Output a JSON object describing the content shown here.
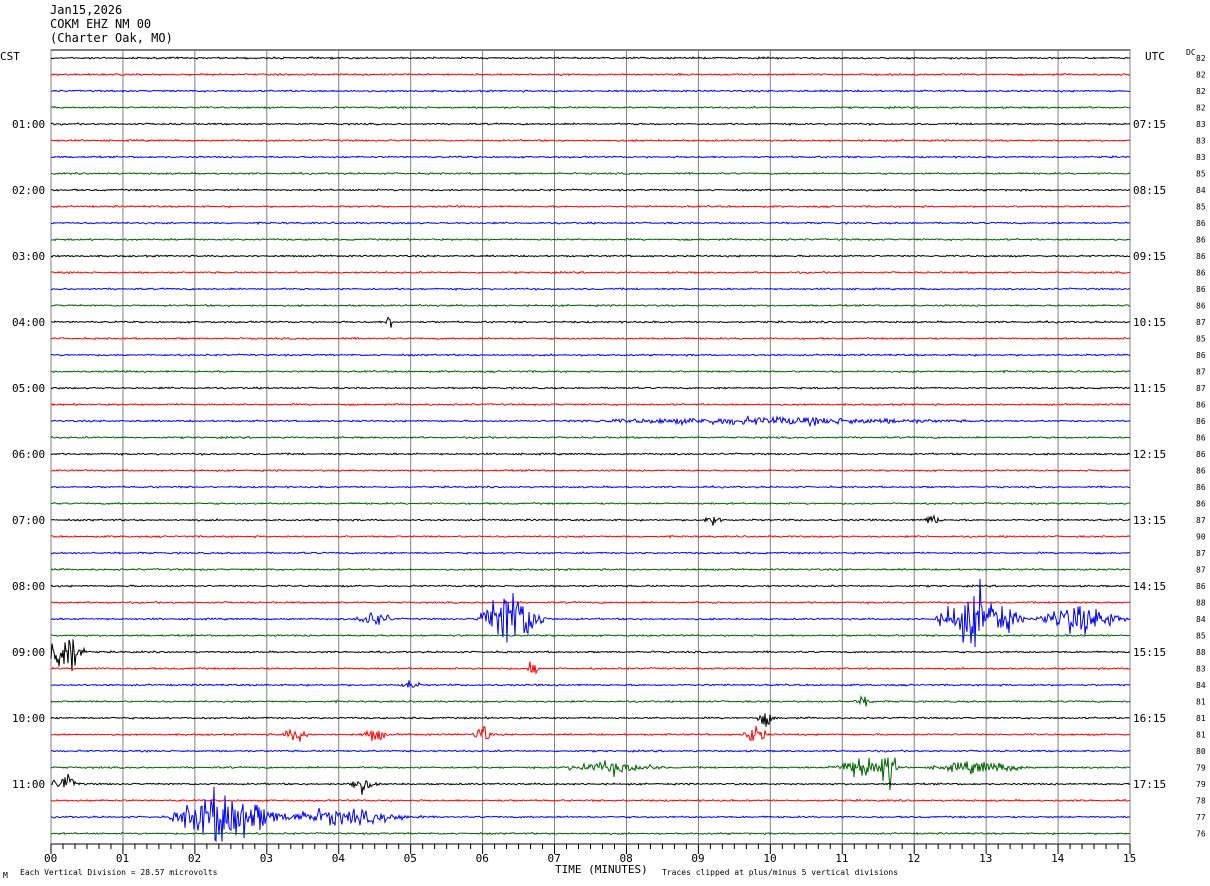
{
  "header": {
    "date": "Jan15,2026",
    "station": "COKM EHZ NM 00",
    "location": "(Charter Oak, MO)"
  },
  "left_axis_label": "CST",
  "right_axis_label": "UTC",
  "dc_label": "DC",
  "footer": {
    "vertical_division": "Each Vertical Division =   28.57 microvolts",
    "xlabel": "TIME (MINUTES)",
    "clip_note": "Traces clipped at plus/minus 5 vertical divisions",
    "corner_mark": "M"
  },
  "colors": {
    "trace_cycle": [
      "#000000",
      "#ff0000",
      "#0000ff",
      "#006400"
    ],
    "grid": "#808080"
  },
  "chart_data": {
    "type": "line",
    "title": "COKM EHZ NM 00",
    "xlabel": "TIME (MINUTES)",
    "xlim": [
      0,
      15
    ],
    "x_ticks": [
      "00",
      "01",
      "02",
      "03",
      "04",
      "05",
      "06",
      "07",
      "08",
      "09",
      "10",
      "11",
      "12",
      "13",
      "14",
      "15"
    ],
    "trace_count": 48,
    "left_time_labels": [
      {
        "trace": 4,
        "label": "01:00"
      },
      {
        "trace": 8,
        "label": "02:00"
      },
      {
        "trace": 12,
        "label": "03:00"
      },
      {
        "trace": 16,
        "label": "04:00"
      },
      {
        "trace": 20,
        "label": "05:00"
      },
      {
        "trace": 24,
        "label": "06:00"
      },
      {
        "trace": 28,
        "label": "07:00"
      },
      {
        "trace": 32,
        "label": "08:00"
      },
      {
        "trace": 36,
        "label": "09:00"
      },
      {
        "trace": 40,
        "label": "10:00"
      },
      {
        "trace": 44,
        "label": "11:00"
      }
    ],
    "right_time_labels": [
      {
        "trace": 4,
        "label": "07:15"
      },
      {
        "trace": 8,
        "label": "08:15"
      },
      {
        "trace": 12,
        "label": "09:15"
      },
      {
        "trace": 16,
        "label": "10:15"
      },
      {
        "trace": 20,
        "label": "11:15"
      },
      {
        "trace": 24,
        "label": "12:15"
      },
      {
        "trace": 28,
        "label": "13:15"
      },
      {
        "trace": 32,
        "label": "14:15"
      },
      {
        "trace": 36,
        "label": "15:15"
      },
      {
        "trace": 40,
        "label": "16:15"
      },
      {
        "trace": 44,
        "label": "17:15"
      }
    ],
    "dc_offsets": [
      82,
      82,
      82,
      82,
      83,
      83,
      83,
      85,
      84,
      85,
      86,
      86,
      86,
      86,
      86,
      86,
      87,
      85,
      86,
      87,
      87,
      86,
      86,
      86,
      86,
      86,
      86,
      86,
      87,
      90,
      87,
      87,
      86,
      88,
      84,
      85,
      88,
      83,
      84,
      81,
      81,
      81,
      80,
      79,
      79,
      78,
      77,
      76
    ],
    "events": [
      {
        "trace": 16,
        "minute": 4.7,
        "amplitude": 1.2,
        "width_min": 0.1
      },
      {
        "trace": 22,
        "minute": 10.0,
        "amplitude": 0.35,
        "width_min": 6.0
      },
      {
        "trace": 28,
        "minute": 9.2,
        "amplitude": 0.6,
        "width_min": 0.3
      },
      {
        "trace": 28,
        "minute": 12.25,
        "amplitude": 0.6,
        "width_min": 0.3
      },
      {
        "trace": 34,
        "minute": 6.4,
        "amplitude": 3.5,
        "width_min": 1.0
      },
      {
        "trace": 34,
        "minute": 12.9,
        "amplitude": 3.0,
        "width_min": 1.3
      },
      {
        "trace": 34,
        "minute": 14.3,
        "amplitude": 1.6,
        "width_min": 1.4
      },
      {
        "trace": 34,
        "minute": 4.5,
        "amplitude": 0.8,
        "width_min": 0.6
      },
      {
        "trace": 36,
        "minute": 0.2,
        "amplitude": 2.8,
        "width_min": 0.6
      },
      {
        "trace": 37,
        "minute": 6.7,
        "amplitude": 1.5,
        "width_min": 0.15
      },
      {
        "trace": 38,
        "minute": 5.0,
        "amplitude": 0.5,
        "width_min": 0.3
      },
      {
        "trace": 39,
        "minute": 11.3,
        "amplitude": 0.5,
        "width_min": 0.3
      },
      {
        "trace": 40,
        "minute": 9.95,
        "amplitude": 0.8,
        "width_min": 0.3
      },
      {
        "trace": 41,
        "minute": 3.4,
        "amplitude": 0.8,
        "width_min": 0.4
      },
      {
        "trace": 41,
        "minute": 4.5,
        "amplitude": 0.7,
        "width_min": 0.4
      },
      {
        "trace": 41,
        "minute": 6.0,
        "amplitude": 1.0,
        "width_min": 0.3
      },
      {
        "trace": 41,
        "minute": 9.8,
        "amplitude": 1.0,
        "width_min": 0.4
      },
      {
        "trace": 43,
        "minute": 7.8,
        "amplitude": 0.6,
        "width_min": 1.5
      },
      {
        "trace": 43,
        "minute": 11.3,
        "amplitude": 1.2,
        "width_min": 1.0
      },
      {
        "trace": 43,
        "minute": 11.65,
        "amplitude": 2.5,
        "width_min": 0.25
      },
      {
        "trace": 43,
        "minute": 12.9,
        "amplitude": 0.6,
        "width_min": 1.5
      },
      {
        "trace": 44,
        "minute": 0.2,
        "amplitude": 0.8,
        "width_min": 0.5
      },
      {
        "trace": 44,
        "minute": 4.3,
        "amplitude": 0.8,
        "width_min": 0.5
      },
      {
        "trace": 46,
        "minute": 2.4,
        "amplitude": 3.0,
        "width_min": 1.6
      },
      {
        "trace": 46,
        "minute": 4.0,
        "amplitude": 0.8,
        "width_min": 2.5
      }
    ]
  }
}
